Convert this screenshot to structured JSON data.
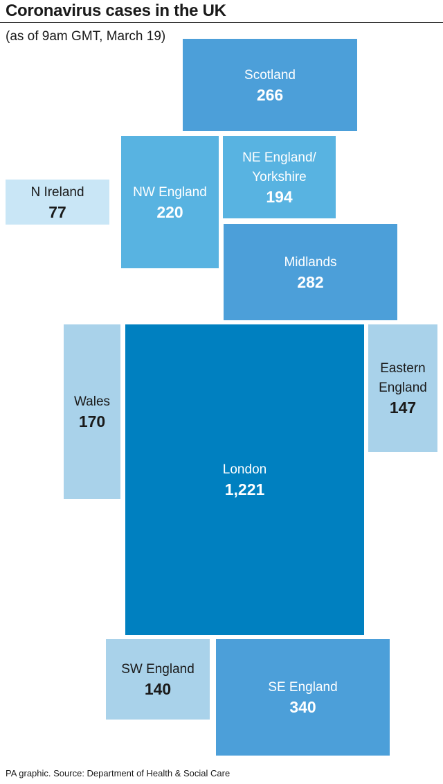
{
  "chart_data": {
    "type": "cartogram",
    "title": "Coronavirus cases in the UK",
    "subtitle": "(as of 9am GMT, March 19)",
    "source": "PA graphic. Source: Department of Health & Social Care",
    "categories": [
      "Scotland",
      "N Ireland",
      "NW England",
      "NE England/ Yorkshire",
      "Midlands",
      "Wales",
      "London",
      "Eastern England",
      "SW England",
      "SE England"
    ],
    "values": [
      266,
      77,
      220,
      194,
      282,
      170,
      1221,
      147,
      140,
      340
    ],
    "value_labels": [
      "266",
      "77",
      "220",
      "194",
      "282",
      "170",
      "1,221",
      "147",
      "140",
      "340"
    ],
    "colors": [
      "#4c9fd9",
      "#c9e6f6",
      "#58b3e1",
      "#58b3e1",
      "#4c9fd9",
      "#a9d2ea",
      "#0080c0",
      "#a9d2ea",
      "#a9d2ea",
      "#4c9fd9"
    ]
  }
}
